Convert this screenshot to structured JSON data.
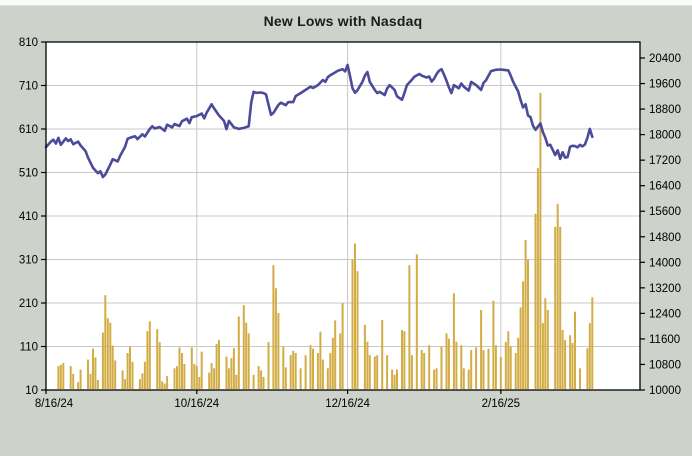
{
  "title": "New Lows with Nasdaq",
  "chart_data": {
    "type": "bar+line",
    "title": "New Lows with Nasdaq",
    "legend": "none",
    "grid": "on",
    "x_axis": {
      "unit": "days since 8/16/24",
      "tick_labels": [
        "8/16/24",
        "10/16/24",
        "12/16/24",
        "2/16/25"
      ],
      "tick_day_offsets": [
        0,
        61,
        122,
        184
      ]
    },
    "left_axis": {
      "series": "New Lows (bars)",
      "min": 10,
      "max": 810,
      "tick_values": [
        810,
        710,
        610,
        510,
        410,
        310,
        210,
        110,
        10
      ],
      "grid_values": [
        110,
        210,
        310,
        410,
        510,
        610,
        710
      ]
    },
    "right_axis": {
      "series": "Nasdaq (line)",
      "min": 10000,
      "max_label": 20400,
      "step": 800,
      "tick_values": [
        20400,
        19600,
        18800,
        18000,
        17200,
        16400,
        15600,
        14800,
        14000,
        13200,
        12400,
        11600,
        10800,
        10000
      ]
    },
    "colors": {
      "bars": "#d2ac45",
      "line": "#4b4b9a",
      "grid": "#c8c8c8",
      "frame": "#000000",
      "plot_bg": "#ffffff",
      "page_bg": "#cdd3ca",
      "text": "#000000"
    },
    "bars": {
      "name": "New Lows",
      "points": [
        [
          5,
          65
        ],
        [
          6,
          68
        ],
        [
          7,
          72
        ],
        [
          10,
          65
        ],
        [
          11,
          47
        ],
        [
          13,
          28
        ],
        [
          14,
          57
        ],
        [
          17,
          80
        ],
        [
          18,
          47
        ],
        [
          19,
          105
        ],
        [
          20,
          85
        ],
        [
          21,
          33
        ],
        [
          23,
          142
        ],
        [
          24,
          228
        ],
        [
          25,
          175
        ],
        [
          26,
          165
        ],
        [
          27,
          112
        ],
        [
          28,
          78
        ],
        [
          31,
          55
        ],
        [
          32,
          35
        ],
        [
          33,
          95
        ],
        [
          34,
          110
        ],
        [
          35,
          75
        ],
        [
          38,
          35
        ],
        [
          39,
          48
        ],
        [
          40,
          75
        ],
        [
          41,
          145
        ],
        [
          42,
          168
        ],
        [
          45,
          150
        ],
        [
          46,
          120
        ],
        [
          47,
          30
        ],
        [
          48,
          25
        ],
        [
          49,
          42
        ],
        [
          52,
          60
        ],
        [
          53,
          65
        ],
        [
          54,
          108
        ],
        [
          55,
          95
        ],
        [
          56,
          70
        ],
        [
          59,
          108
        ],
        [
          60,
          70
        ],
        [
          61,
          65
        ],
        [
          62,
          40
        ],
        [
          63,
          98
        ],
        [
          66,
          50
        ],
        [
          67,
          72
        ],
        [
          68,
          60
        ],
        [
          69,
          116
        ],
        [
          70,
          125
        ],
        [
          73,
          87
        ],
        [
          74,
          60
        ],
        [
          75,
          83
        ],
        [
          76,
          106
        ],
        [
          77,
          45
        ],
        [
          78,
          179
        ],
        [
          80,
          205
        ],
        [
          81,
          165
        ],
        [
          82,
          140
        ],
        [
          84,
          45
        ],
        [
          86,
          65
        ],
        [
          87,
          55
        ],
        [
          88,
          40
        ],
        [
          90,
          120
        ],
        [
          92,
          297
        ],
        [
          93,
          244
        ],
        [
          94,
          187
        ],
        [
          96,
          110
        ],
        [
          97,
          62
        ],
        [
          99,
          90
        ],
        [
          100,
          100
        ],
        [
          101,
          95
        ],
        [
          103,
          60
        ],
        [
          105,
          90
        ],
        [
          107,
          113
        ],
        [
          108,
          105
        ],
        [
          110,
          95
        ],
        [
          111,
          144
        ],
        [
          112,
          80
        ],
        [
          114,
          60
        ],
        [
          115,
          95
        ],
        [
          116,
          130
        ],
        [
          117,
          170
        ],
        [
          119,
          140
        ],
        [
          120,
          210
        ],
        [
          124,
          310
        ],
        [
          125,
          347
        ],
        [
          126,
          283
        ],
        [
          129,
          160
        ],
        [
          130,
          121
        ],
        [
          131,
          90
        ],
        [
          133,
          87
        ],
        [
          134,
          90
        ],
        [
          136,
          171
        ],
        [
          138,
          90
        ],
        [
          140,
          57
        ],
        [
          141,
          45
        ],
        [
          142,
          57
        ],
        [
          144,
          148
        ],
        [
          145,
          145
        ],
        [
          147,
          297
        ],
        [
          148,
          90
        ],
        [
          150,
          322
        ],
        [
          152,
          102
        ],
        [
          153,
          95
        ],
        [
          155,
          113
        ],
        [
          157,
          57
        ],
        [
          158,
          60
        ],
        [
          160,
          110
        ],
        [
          162,
          140
        ],
        [
          163,
          128
        ],
        [
          165,
          232
        ],
        [
          166,
          121
        ],
        [
          168,
          113
        ],
        [
          169,
          60
        ],
        [
          171,
          57
        ],
        [
          172,
          102
        ],
        [
          174,
          108
        ],
        [
          176,
          194
        ],
        [
          177,
          102
        ],
        [
          179,
          105
        ],
        [
          181,
          215
        ],
        [
          182,
          113
        ],
        [
          184,
          86
        ],
        [
          186,
          120
        ],
        [
          187,
          145
        ],
        [
          188,
          110
        ],
        [
          190,
          95
        ],
        [
          191,
          130
        ],
        [
          192,
          200
        ],
        [
          193,
          260
        ],
        [
          194,
          355
        ],
        [
          195,
          310
        ],
        [
          198,
          415
        ],
        [
          199,
          520
        ],
        [
          200,
          693
        ],
        [
          201,
          164
        ],
        [
          202,
          221
        ],
        [
          203,
          194
        ],
        [
          206,
          385
        ],
        [
          207,
          438
        ],
        [
          208,
          385
        ],
        [
          209,
          148
        ],
        [
          210,
          125
        ],
        [
          212,
          136
        ],
        [
          213,
          118
        ],
        [
          214,
          190
        ],
        [
          216,
          60
        ],
        [
          219,
          106
        ],
        [
          220,
          164
        ],
        [
          221,
          223
        ]
      ]
    },
    "line": {
      "name": "Nasdaq",
      "points": [
        [
          0,
          17610
        ],
        [
          2,
          17780
        ],
        [
          3,
          17840
        ],
        [
          4,
          17720
        ],
        [
          5,
          17900
        ],
        [
          6,
          17680
        ],
        [
          8,
          17880
        ],
        [
          9,
          17800
        ],
        [
          10,
          17850
        ],
        [
          11,
          17700
        ],
        [
          13,
          17780
        ],
        [
          14,
          17660
        ],
        [
          16,
          17480
        ],
        [
          17,
          17280
        ],
        [
          19,
          16960
        ],
        [
          21,
          16790
        ],
        [
          22,
          16850
        ],
        [
          23,
          16670
        ],
        [
          24,
          16750
        ],
        [
          26,
          17060
        ],
        [
          27,
          17230
        ],
        [
          29,
          17160
        ],
        [
          30,
          17340
        ],
        [
          32,
          17620
        ],
        [
          33,
          17870
        ],
        [
          34,
          17900
        ],
        [
          36,
          17950
        ],
        [
          37,
          17860
        ],
        [
          39,
          18010
        ],
        [
          40,
          17940
        ],
        [
          42,
          18180
        ],
        [
          43,
          18260
        ],
        [
          44,
          18190
        ],
        [
          46,
          18240
        ],
        [
          48,
          18120
        ],
        [
          49,
          18310
        ],
        [
          51,
          18230
        ],
        [
          52,
          18330
        ],
        [
          54,
          18270
        ],
        [
          55,
          18420
        ],
        [
          57,
          18500
        ],
        [
          58,
          18360
        ],
        [
          59,
          18550
        ],
        [
          61,
          18580
        ],
        [
          63,
          18660
        ],
        [
          64,
          18510
        ],
        [
          65,
          18690
        ],
        [
          67,
          18950
        ],
        [
          68,
          18820
        ],
        [
          70,
          18600
        ],
        [
          72,
          18430
        ],
        [
          73,
          18170
        ],
        [
          74,
          18430
        ],
        [
          76,
          18230
        ],
        [
          78,
          18180
        ],
        [
          80,
          18210
        ],
        [
          82,
          18260
        ],
        [
          83,
          19000
        ],
        [
          84,
          19340
        ],
        [
          85,
          19310
        ],
        [
          87,
          19320
        ],
        [
          88,
          19300
        ],
        [
          89,
          19260
        ],
        [
          91,
          18620
        ],
        [
          92,
          18680
        ],
        [
          94,
          18930
        ],
        [
          95,
          19000
        ],
        [
          97,
          18920
        ],
        [
          98,
          19020
        ],
        [
          100,
          19020
        ],
        [
          101,
          19210
        ],
        [
          103,
          19300
        ],
        [
          105,
          19400
        ],
        [
          107,
          19500
        ],
        [
          108,
          19460
        ],
        [
          110,
          19550
        ],
        [
          112,
          19710
        ],
        [
          113,
          19650
        ],
        [
          114,
          19800
        ],
        [
          115,
          19860
        ],
        [
          117,
          19950
        ],
        [
          118,
          20000
        ],
        [
          120,
          20050
        ],
        [
          121,
          19980
        ],
        [
          122,
          20180
        ],
        [
          123,
          19820
        ],
        [
          124,
          19450
        ],
        [
          125,
          19310
        ],
        [
          126,
          19390
        ],
        [
          128,
          19650
        ],
        [
          129,
          19850
        ],
        [
          130,
          19960
        ],
        [
          131,
          19650
        ],
        [
          133,
          19400
        ],
        [
          134,
          19300
        ],
        [
          135,
          19340
        ],
        [
          137,
          19240
        ],
        [
          138,
          19440
        ],
        [
          139,
          19550
        ],
        [
          141,
          19400
        ],
        [
          142,
          19200
        ],
        [
          144,
          19090
        ],
        [
          145,
          19300
        ],
        [
          146,
          19550
        ],
        [
          148,
          19720
        ],
        [
          149,
          19810
        ],
        [
          151,
          19900
        ],
        [
          152,
          19850
        ],
        [
          154,
          19790
        ],
        [
          155,
          19820
        ],
        [
          156,
          19660
        ],
        [
          157,
          19750
        ],
        [
          158,
          19900
        ],
        [
          159,
          20000
        ],
        [
          160,
          20050
        ],
        [
          161,
          19880
        ],
        [
          162,
          19690
        ],
        [
          163,
          19480
        ],
        [
          164,
          19300
        ],
        [
          165,
          19550
        ],
        [
          167,
          19450
        ],
        [
          168,
          19600
        ],
        [
          169,
          19500
        ],
        [
          171,
          19380
        ],
        [
          172,
          19650
        ],
        [
          174,
          19550
        ],
        [
          176,
          19400
        ],
        [
          177,
          19620
        ],
        [
          178,
          19700
        ],
        [
          180,
          19990
        ],
        [
          182,
          20030
        ],
        [
          184,
          20040
        ],
        [
          185,
          20030
        ],
        [
          187,
          20010
        ],
        [
          188,
          19850
        ],
        [
          189,
          19650
        ],
        [
          191,
          19350
        ],
        [
          192,
          19080
        ],
        [
          193,
          18850
        ],
        [
          194,
          18950
        ],
        [
          195,
          18600
        ],
        [
          196,
          18550
        ],
        [
          197,
          18280
        ],
        [
          198,
          18150
        ],
        [
          200,
          18350
        ],
        [
          201,
          18080
        ],
        [
          202,
          17900
        ],
        [
          203,
          17660
        ],
        [
          204,
          17680
        ],
        [
          206,
          17360
        ],
        [
          207,
          17510
        ],
        [
          208,
          17240
        ],
        [
          209,
          17450
        ],
        [
          210,
          17280
        ],
        [
          211,
          17300
        ],
        [
          212,
          17620
        ],
        [
          213,
          17650
        ],
        [
          214,
          17640
        ],
        [
          215,
          17600
        ],
        [
          216,
          17680
        ],
        [
          217,
          17630
        ],
        [
          218,
          17690
        ],
        [
          219,
          17900
        ],
        [
          220,
          18180
        ],
        [
          221,
          17930
        ]
      ]
    }
  }
}
